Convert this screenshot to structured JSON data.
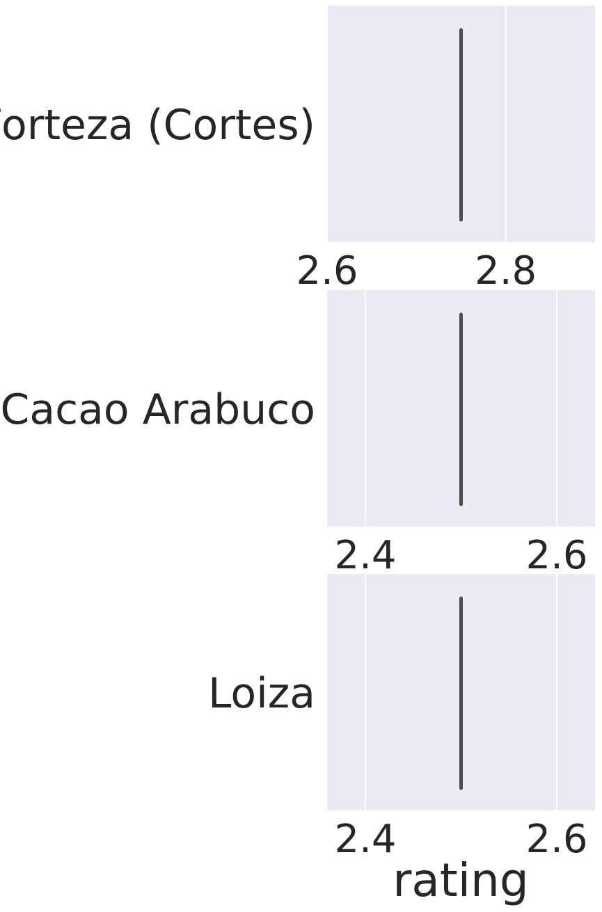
{
  "chart_data": {
    "type": "box",
    "orientation": "horizontal",
    "xlabel": "rating",
    "grid": true,
    "colors": {
      "panel_bg": "#EAEAF2",
      "grid": "#FFFFFF",
      "box_line": "#4C4C4C",
      "text": "#262626"
    },
    "panels": [
      {
        "category": "Forteza (Cortes)",
        "xlim": [
          2.6,
          2.9
        ],
        "ticks": [
          2.6,
          2.8
        ],
        "tick_labels": [
          "2.6",
          "2.8"
        ],
        "box": {
          "min": 2.75,
          "q1": 2.75,
          "median": 2.75,
          "q3": 2.75,
          "max": 2.75
        }
      },
      {
        "category": "Cacao Arabuco",
        "xlim": [
          2.36,
          2.64
        ],
        "ticks": [
          2.4,
          2.6
        ],
        "tick_labels": [
          "2.4",
          "2.6"
        ],
        "box": {
          "min": 2.5,
          "q1": 2.5,
          "median": 2.5,
          "q3": 2.5,
          "max": 2.5
        }
      },
      {
        "category": "Loiza",
        "xlim": [
          2.36,
          2.64
        ],
        "ticks": [
          2.4,
          2.6
        ],
        "tick_labels": [
          "2.4",
          "2.6"
        ],
        "box": {
          "min": 2.5,
          "q1": 2.5,
          "median": 2.5,
          "q3": 2.5,
          "max": 2.5
        }
      }
    ]
  }
}
